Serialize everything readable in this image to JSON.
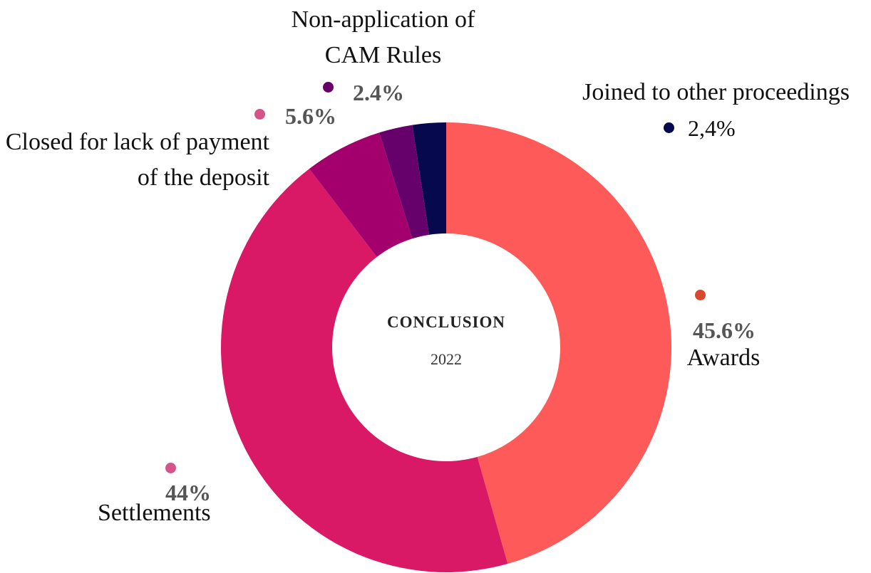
{
  "chart_data": {
    "type": "donut",
    "title": "CONCLUSION",
    "subtitle": "2022",
    "categories": [
      "Awards",
      "Settlements",
      "Closed for lack of payment of the deposit",
      "Non-application of CAM Rules",
      "Joined to other proceedings"
    ],
    "values": [
      45.6,
      44,
      5.6,
      2.4,
      2.4
    ],
    "value_labels": [
      "45.6%",
      "44%",
      "5.6%",
      "2.4%",
      "2,4%"
    ],
    "colors": [
      "#ff5a5a",
      "#d91866",
      "#a3006d",
      "#66006b",
      "#07094e"
    ],
    "marker_colors": [
      "#d9482a",
      "#d4548a",
      "#d4548a",
      "#66006b",
      "#07094e"
    ]
  }
}
